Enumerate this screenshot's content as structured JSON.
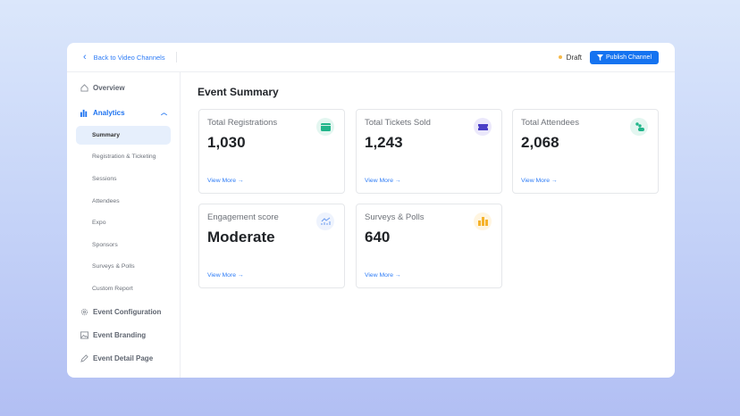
{
  "header": {
    "back_label": "Back to Video Channels",
    "status": "Draft",
    "status_color": "#f5b94a",
    "publish_label": "Publish Channel",
    "accent": "#1573f0"
  },
  "sidebar": {
    "overview": "Overview",
    "analytics": "Analytics",
    "analytics_items": [
      "Summary",
      "Registration & Ticketing",
      "Sessions",
      "Attendees",
      "Expo",
      "Sponsors",
      "Surveys & Polls",
      "Custom Report"
    ],
    "event_configuration": "Event Configuration",
    "event_branding": "Event Branding",
    "event_detail_page": "Event Detail Page"
  },
  "main": {
    "title": "Event Summary",
    "cards": [
      {
        "title": "Total Registrations",
        "value": "1,030",
        "link": "View More →",
        "icon": "calendar-icon"
      },
      {
        "title": "Total Tickets Sold",
        "value": "1,243",
        "link": "View More →",
        "icon": "ticket-icon"
      },
      {
        "title": "Total Attendees",
        "value": "2,068",
        "link": "View More →",
        "icon": "people-icon"
      },
      {
        "title": "Engagement score",
        "value": "Moderate",
        "link": "View More →",
        "icon": "trend-chart-icon"
      },
      {
        "title": "Surveys & Polls",
        "value": "640",
        "link": "View More →",
        "icon": "bar-chart-icon"
      }
    ]
  }
}
